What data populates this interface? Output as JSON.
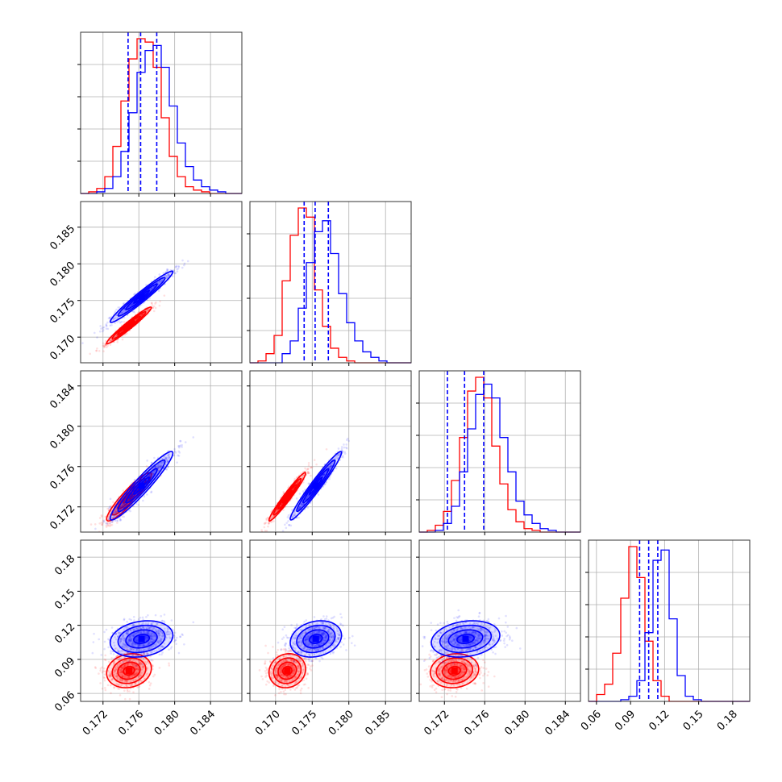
{
  "chart_data": {
    "type": "corner",
    "colors": {
      "series_a": "#ff0000",
      "series_b": "#0000ff",
      "grid": "#b0b0b0"
    },
    "params": [
      {
        "range": [
          0.1695,
          0.1875
        ],
        "ticks": [
          "0.172",
          "0.176",
          "0.180",
          "0.184"
        ]
      },
      {
        "range": [
          0.1665,
          0.1885
        ],
        "ticks": [
          "0.170",
          "0.175",
          "0.180",
          "0.185"
        ]
      },
      {
        "range": [
          0.1695,
          0.1855
        ],
        "ticks": [
          "0.172",
          "0.176",
          "0.180",
          "0.184"
        ]
      },
      {
        "range": [
          0.053,
          0.195
        ],
        "ticks": [
          "0.06",
          "0.09",
          "0.12",
          "0.15",
          "0.18"
        ]
      }
    ],
    "series": [
      {
        "key": "series_a",
        "mean": [
          0.1749,
          0.1716,
          0.173,
          0.08
        ],
        "sd": [
          0.00125,
          0.00125,
          0.0012,
          0.0075
        ],
        "corr": [
          [
            1,
            0.97,
            0.92,
            0.15
          ],
          [
            0.97,
            1,
            0.97,
            0.1
          ],
          [
            0.92,
            0.97,
            1,
            0.1
          ],
          [
            0.15,
            0.1,
            0.1,
            1
          ]
        ]
      },
      {
        "key": "series_b",
        "mean": [
          0.1763,
          0.1755,
          0.1741,
          0.108
        ],
        "sd": [
          0.00175,
          0.00175,
          0.0017,
          0.008
        ],
        "corr": [
          [
            1,
            0.97,
            0.95,
            0.2
          ],
          [
            0.97,
            1,
            0.97,
            0.2
          ],
          [
            0.95,
            0.97,
            1,
            0.2
          ],
          [
            0.2,
            0.2,
            0.2,
            1
          ]
        ]
      }
    ],
    "quantile_lines": [
      [
        0.1748,
        0.1762,
        0.178
      ],
      [
        0.1739,
        0.1754,
        0.1772
      ],
      [
        0.1723,
        0.174,
        0.1759
      ],
      [
        0.098,
        0.106,
        0.114
      ]
    ],
    "histograms": [
      {
        "series_a": [
          0,
          1,
          3,
          10,
          28,
          55,
          80,
          92,
          90,
          75,
          45,
          22,
          10,
          4,
          2,
          1,
          0,
          0,
          0,
          0
        ],
        "series_b": [
          0,
          0,
          1,
          3,
          10,
          25,
          48,
          72,
          85,
          88,
          75,
          52,
          30,
          16,
          8,
          4,
          2,
          1,
          0,
          0
        ]
      },
      {
        "series_a": [
          0,
          1,
          5,
          15,
          45,
          70,
          85,
          80,
          40,
          20,
          8,
          3,
          1,
          0,
          0,
          0,
          0,
          0,
          0,
          0
        ],
        "series_b": [
          0,
          0,
          0,
          0,
          5,
          12,
          30,
          55,
          72,
          78,
          60,
          38,
          22,
          12,
          6,
          3,
          1,
          0,
          0,
          0
        ]
      },
      {
        "series_a": [
          0,
          1,
          4,
          12,
          30,
          55,
          82,
          90,
          78,
          50,
          28,
          13,
          6,
          2,
          1,
          0,
          0,
          0,
          0,
          0
        ],
        "series_b": [
          0,
          0,
          1,
          5,
          15,
          35,
          60,
          80,
          86,
          78,
          55,
          35,
          18,
          10,
          5,
          2,
          1,
          0,
          0,
          0
        ]
      },
      {
        "series_a": [
          0,
          4,
          10,
          28,
          60,
          90,
          72,
          35,
          12,
          3,
          0,
          0,
          0,
          0,
          0,
          0,
          0,
          0,
          0,
          0
        ],
        "series_b": [
          0,
          0,
          0,
          0,
          1,
          3,
          12,
          40,
          82,
          88,
          48,
          15,
          3,
          1,
          0,
          0,
          0,
          0,
          0,
          0
        ]
      }
    ]
  }
}
